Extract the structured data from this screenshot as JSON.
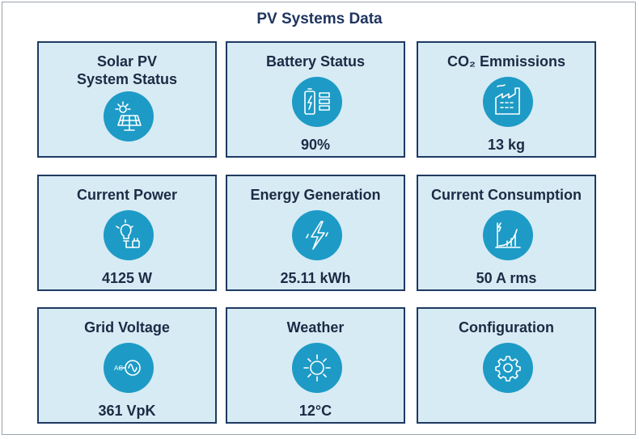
{
  "header": {
    "title": "PV Systems Data"
  },
  "tiles": [
    {
      "label": "Solar PV\nSystem Status"
    },
    {
      "label": "Battery Status",
      "value": "90%"
    },
    {
      "label": "CO₂ Emmissions",
      "value": "13 kg"
    },
    {
      "label": "Current Power",
      "value": "4125 W"
    },
    {
      "label": "Energy Generation",
      "value": "25.11 kWh"
    },
    {
      "label": "Current Consumption",
      "value": "50 A rms"
    },
    {
      "label": "Grid Voltage",
      "value": "361 VpK"
    },
    {
      "label": "Weather",
      "value": "12°C"
    },
    {
      "label": "Configuration"
    }
  ]
}
